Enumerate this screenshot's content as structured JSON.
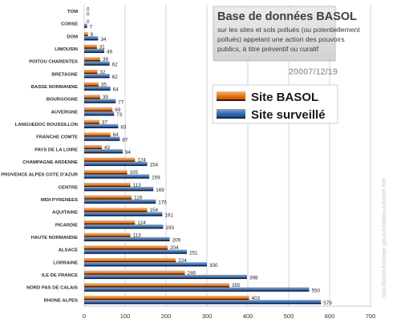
{
  "title_box": {
    "title": "Base de données BASOL",
    "lines": [
      "sur les sites et sols pollués (ou potentiellement",
      " pollués)  appelant une action des pouvoirs",
      "publics,  à titre préventif ou curatif"
    ]
  },
  "date": "20007/12/19",
  "source": "http://basol.ecologie.gouv.fr/tableaux/home.htm",
  "colors": {
    "basol": "#f07a1a",
    "surveille": "#3d6fb8",
    "grid": "#c8c8c8",
    "title_box": "#dcdcdc"
  },
  "chart_data": {
    "type": "bar",
    "orientation": "horizontal",
    "title": "Base de données BASOL",
    "subtitle": "sur les sites et sols pollués (ou potentiellement pollués) appelant une action des pouvoirs publics, à titre préventif ou curatif",
    "categories": [
      "TOM",
      "CORSE",
      "DOM",
      "LIMOUSIN",
      "POITOU CHARENTES",
      "BRETAGNE",
      "BASSE NORMANDIE",
      "BOURGOGNE",
      "AUVERGNE",
      "LANGUEDOC ROUSSILLON",
      "FRANCHE COMTE",
      "PAYS DE LA LOIRE",
      "CHAMPAGNE ARDENNE",
      "PROVENCE ALPES COTE D'AZUR",
      "CENTRE",
      "MIDI PYRENEES",
      "AQUITAINE",
      "PICARDIE",
      "HAUTE NORMANDIE",
      "ALSACE",
      "LORRAINE",
      "ILE DE FRANCE",
      "NORD PAS DE CALAIS",
      "RHONE ALPES"
    ],
    "series": [
      {
        "name": "Site BASOL",
        "values": [
          0,
          0,
          9,
          31,
          39,
          32,
          35,
          39,
          69,
          37,
          64,
          43,
          124,
          105,
          113,
          116,
          154,
          124,
          113,
          204,
          224,
          246,
          355,
          403
        ]
      },
      {
        "name": "Site surveillé",
        "values": [
          0,
          7,
          34,
          49,
          62,
          62,
          64,
          77,
          73,
          83,
          87,
          94,
          154,
          159,
          169,
          175,
          191,
          193,
          209,
          251,
          300,
          398,
          550,
          579
        ]
      }
    ],
    "value_labels": [
      [
        "0",
        "0",
        "9",
        "31",
        "39",
        "32",
        "35",
        "39",
        "69",
        "37",
        "64",
        "43",
        "124",
        "105",
        "113",
        "116",
        "154",
        "124",
        "113",
        "204",
        "224",
        "246",
        "355",
        "403"
      ],
      [
        "0",
        "7",
        "34",
        "49",
        "62",
        "62",
        "64",
        "77",
        "73",
        "83",
        "87",
        "94",
        "154",
        "159",
        "169",
        "175",
        "191",
        "193",
        "209",
        "251",
        "300",
        "398",
        "550",
        "579"
      ]
    ],
    "xlim": [
      0,
      700
    ],
    "xticks": [
      "0",
      "100",
      "200",
      "300",
      "400",
      "500",
      "600",
      "700"
    ],
    "grid": true,
    "legend": "right, mid-upper"
  }
}
